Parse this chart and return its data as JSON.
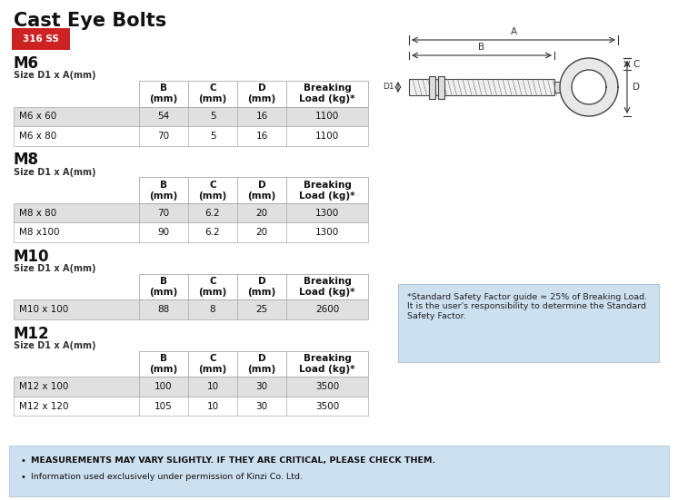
{
  "title": "Cast Eye Bolts",
  "badge_text": "316 SS",
  "badge_color": "#cc2222",
  "badge_text_color": "#ffffff",
  "background_color": "#ffffff",
  "sections": [
    {
      "size": "M6",
      "subtitle": "Size D1 x A(mm)",
      "col_headers": [
        "B\n(mm)",
        "C\n(mm)",
        "D\n(mm)",
        "Breaking\nLoad (kg)*"
      ],
      "rows": [
        [
          "M6 x 60",
          "54",
          "5",
          "16",
          "1100"
        ],
        [
          "M6 x 80",
          "70",
          "5",
          "16",
          "1100"
        ]
      ]
    },
    {
      "size": "M8",
      "subtitle": "Size D1 x A(mm)",
      "col_headers": [
        "B\n(mm)",
        "C\n(mm)",
        "D\n(mm)",
        "Breaking\nLoad (kg)*"
      ],
      "rows": [
        [
          "M8 x 80",
          "70",
          "6.2",
          "20",
          "1300"
        ],
        [
          "M8 x100",
          "90",
          "6.2",
          "20",
          "1300"
        ]
      ]
    },
    {
      "size": "M10",
      "subtitle": "Size D1 x A(mm)",
      "col_headers": [
        "B\n(mm)",
        "C\n(mm)",
        "D\n(mm)",
        "Breaking\nLoad (kg)*"
      ],
      "rows": [
        [
          "M10 x 100",
          "88",
          "8",
          "25",
          "2600"
        ]
      ]
    },
    {
      "size": "M12",
      "subtitle": "Size D1 x A(mm)",
      "col_headers": [
        "B\n(mm)",
        "C\n(mm)",
        "D\n(mm)",
        "Breaking\nLoad (kg)*"
      ],
      "rows": [
        [
          "M12 x 100",
          "100",
          "10",
          "30",
          "3500"
        ],
        [
          "M12 x 120",
          "105",
          "10",
          "30",
          "3500"
        ]
      ]
    }
  ],
  "note_box_text": "*Standard Safety Factor guide ≈ 25% of Breaking Load.\nIt is the user's responsibility to determine the Standard\nSafety Factor.",
  "note_box_bg": "#cde0f0",
  "footer_bullets": [
    "MEASUREMENTS MAY VARY SLIGHTLY. IF THEY ARE CRITICAL, PLEASE CHECK THEM.",
    "Information used exclusively under permission of Kinzi Co. Ltd."
  ],
  "footer_bg": "#cde0f0",
  "table_header_bg": "#ffffff",
  "table_row_alt_bg": "#e0e0e0",
  "table_row_bg": "#ffffff",
  "table_border_color": "#999999",
  "diagram_label_color": "#333333"
}
